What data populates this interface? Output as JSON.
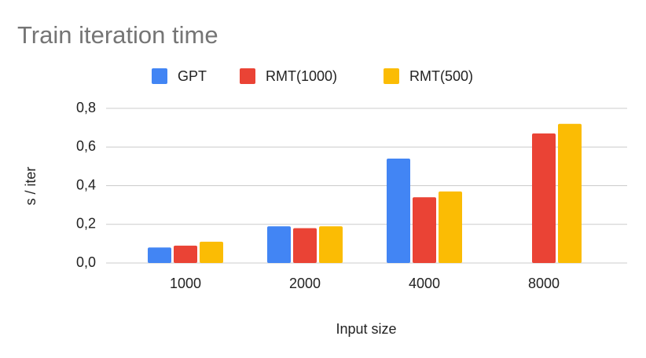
{
  "chart_data": {
    "type": "bar",
    "title": "Train iteration time",
    "x_label": "Input size",
    "y_label": "s / iter",
    "categories": [
      "1000",
      "2000",
      "4000",
      "8000"
    ],
    "series": [
      {
        "name": "GPT",
        "color": "#4285f4",
        "values": [
          0.08,
          0.19,
          0.54,
          null
        ]
      },
      {
        "name": "RMT(1000)",
        "color": "#ea4335",
        "values": [
          0.09,
          0.18,
          0.34,
          0.67
        ]
      },
      {
        "name": "RMT(500)",
        "color": "#fbbc04",
        "values": [
          0.11,
          0.19,
          0.37,
          0.72
        ]
      }
    ],
    "ylim": [
      0,
      0.8
    ],
    "yticks": [
      {
        "value": 0,
        "label": "0,0"
      },
      {
        "value": 0.2,
        "label": "0,2"
      },
      {
        "value": 0.4,
        "label": "0,4"
      },
      {
        "value": 0.6,
        "label": "0,6"
      },
      {
        "value": 0.8,
        "label": "0,8"
      }
    ],
    "grid": true,
    "legend": "top"
  }
}
